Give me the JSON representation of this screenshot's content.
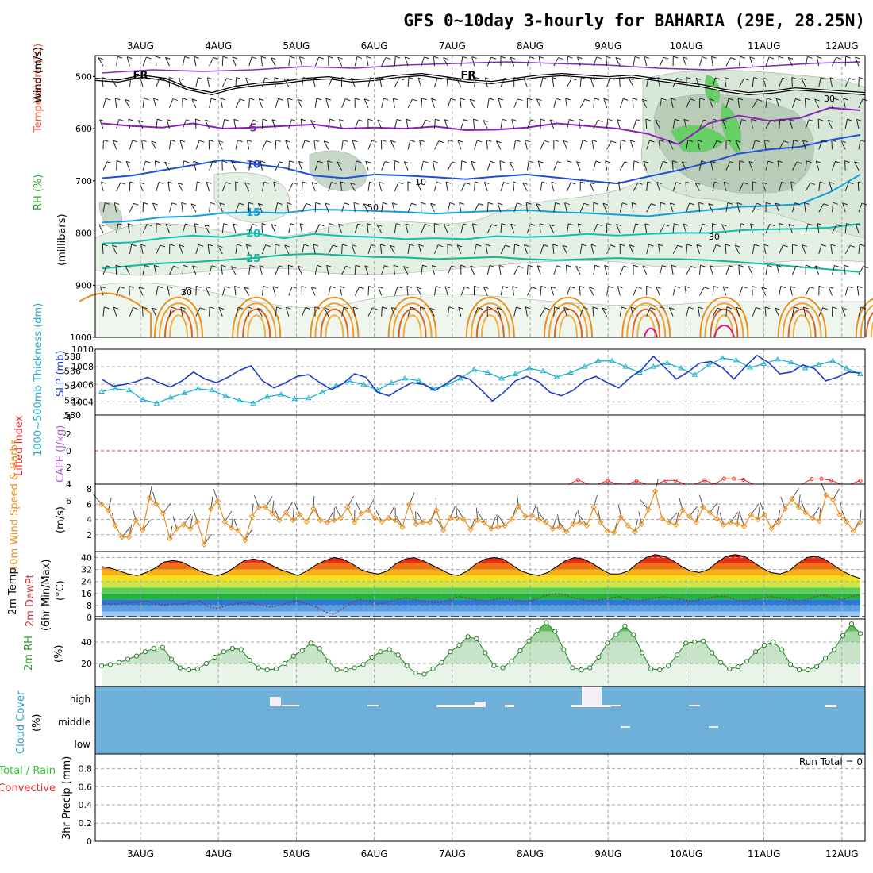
{
  "title": "GFS 0~10day 3-hourly for BAHARIA (29E, 28.25N)",
  "colors": {
    "wind_label": "#000000",
    "temp_label": "#ff5a3c",
    "rh_label": "#2aa02a",
    "thickness": "#20b2c8",
    "slp": "#1e3cc8",
    "cape": "#b060d0",
    "lifted": "#e83030",
    "wind10": "#e89020",
    "temp2m": "#000000",
    "dewpt": "#c04040",
    "rh2m": "#28a028",
    "cloud": "#2e9cd0",
    "precip_total": "#28c828",
    "precip_conv": "#e83030"
  },
  "chart_data": {
    "type": "line",
    "x_date_labels": [
      "3AUG",
      "4AUG",
      "5AUG",
      "6AUG",
      "7AUG",
      "8AUG",
      "9AUG",
      "10AUG",
      "11AUG",
      "12AUG"
    ],
    "x_start": "2AUG 12Z",
    "x_step": "3hr",
    "panels": [
      {
        "id": "upper",
        "ylabel_parts": [
          "Wind (m/s)",
          "Temperature (°C)",
          "RH (%)"
        ],
        "ylabel2": "(millibars)",
        "y_ticks": [
          "500",
          "600",
          "700",
          "800",
          "900",
          "1000"
        ],
        "ylim": [
          460,
          1000
        ],
        "freezing_label": "FR",
        "isotherms": [
          {
            "label": "5",
            "level": [
              590,
              595,
              598,
              590,
              600,
              598,
              595,
              592,
              600,
              598,
              600,
              596,
              603,
              602,
              598,
              590,
              595,
              600,
              610,
              630,
              590,
              575,
              585,
              580,
              560,
              565
            ]
          },
          {
            "label": "10",
            "level": [
              695,
              690,
              680,
              670,
              660,
              668,
              675,
              690,
              695,
              688,
              690,
              693,
              697,
              692,
              688,
              694,
              700,
              705,
              692,
              680,
              665,
              648,
              640,
              635,
              622,
              612
            ]
          },
          {
            "label": "15",
            "level": [
              780,
              777,
              770,
              768,
              762,
              760,
              762,
              755,
              756,
              758,
              760,
              763,
              760,
              758,
              756,
              760,
              762,
              765,
              768,
              762,
              756,
              750,
              748,
              745,
              722,
              688
            ]
          },
          {
            "label": "20",
            "level": [
              820,
              818,
              810,
              805,
              808,
              800,
              810,
              802,
              806,
              808,
              812,
              810,
              812,
              806,
              808,
              806,
              802,
              805,
              802,
              800,
              800,
              795,
              793,
              792,
              790,
              782
            ]
          },
          {
            "label": "25",
            "level": [
              868,
              863,
              858,
              856,
              852,
              848,
              842,
              840,
              843,
              846,
              847,
              850,
              848,
              846,
              850,
              852,
              850,
              848,
              850,
              850,
              852,
              856,
              860,
              865,
              870,
              875
            ]
          }
        ],
        "rh_labels": [
          "30",
          "10",
          "50",
          "30",
          "30"
        ]
      },
      {
        "id": "thickness-slp",
        "ylabel_parts": [
          "1000~500mb Thickness (dm)",
          "SLP (mb)"
        ],
        "y_ticks_left": [
          "580",
          "582",
          "584",
          "586",
          "588"
        ],
        "y_ticks_right": [
          "1004",
          "1006",
          "1008",
          "1010"
        ],
        "thickness_dm": [
          583.2,
          583.6,
          583.4,
          582.1,
          581.6,
          582.4,
          583.0,
          583.6,
          583.4,
          582.6,
          582.0,
          581.6,
          582.5,
          582.8,
          582.2,
          582.3,
          583.1,
          584.0,
          584.6,
          584.2,
          583.4,
          584.4,
          585.0,
          584.7,
          583.6,
          584.1,
          585.0,
          586.2,
          585.8,
          585.0,
          585.6,
          586.4,
          586.0,
          585.2,
          585.8,
          586.6,
          587.4,
          587.4,
          586.6,
          585.8,
          586.6,
          587.1,
          586.4,
          585.5,
          586.8,
          587.8,
          587.5,
          586.5,
          587.0,
          587.6,
          587.2,
          586.4,
          586.9,
          587.4,
          586.4,
          585.6
        ],
        "slp_mb": [
          1006.6,
          1005.8,
          1006.0,
          1006.3,
          1006.8,
          1006.2,
          1005.7,
          1006.4,
          1007.4,
          1006.6,
          1006.2,
          1006.8,
          1007.6,
          1008.1,
          1006.4,
          1005.6,
          1006.2,
          1006.9,
          1007.1,
          1006.2,
          1005.4,
          1006.1,
          1007.2,
          1006.8,
          1005.1,
          1004.7,
          1005.5,
          1006.2,
          1006.0,
          1005.3,
          1006.1,
          1007.0,
          1006.6,
          1005.4,
          1004.1,
          1005.1,
          1006.4,
          1006.9,
          1006.3,
          1005.1,
          1004.7,
          1005.3,
          1006.4,
          1006.9,
          1006.2,
          1005.6,
          1006.8,
          1007.7,
          1009.2,
          1007.9,
          1006.6,
          1007.4,
          1008.4,
          1008.6,
          1007.9,
          1006.6,
          1008.0,
          1009.3,
          1008.5,
          1007.2,
          1007.4,
          1008.2,
          1007.8,
          1006.4,
          1006.8,
          1007.4,
          1007.3
        ]
      },
      {
        "id": "cape-li",
        "ylabel_parts": [
          "Lifted Index",
          "CAPE (J/kg)"
        ],
        "y_ticks_left": [
          "-4",
          "-2",
          "0",
          "2",
          "4",
          "6"
        ],
        "lifted_index": [
          8,
          8,
          8,
          8,
          8,
          8,
          8,
          8,
          8,
          8,
          8,
          8,
          8,
          8,
          8,
          8,
          8,
          8,
          8,
          8,
          8,
          8,
          8,
          8,
          8,
          8,
          8,
          8,
          8,
          8,
          8,
          8,
          8,
          8,
          8,
          8,
          8,
          8,
          8,
          8,
          8,
          8,
          8,
          8,
          8,
          8,
          8,
          8,
          8,
          5.6,
          8,
          8,
          6.1,
          7.9,
          8,
          6.2,
          8,
          8,
          5.9,
          5.9,
          8,
          8,
          5.8,
          8,
          4.8,
          4.9,
          5.5,
          8,
          8,
          8,
          8,
          8,
          8,
          5.1,
          4.9,
          5.8,
          8,
          8,
          5.9
        ]
      },
      {
        "id": "wind10",
        "ylabel_parts": [
          "10m Wind Speed & Barbs",
          "(m/s)"
        ],
        "y_ticks": [
          "2",
          "4",
          "6",
          "8"
        ],
        "speed_ms": [
          6.0,
          5.2,
          3.2,
          1.7,
          1.7,
          3.9,
          2.6,
          6.8,
          6.0,
          4.8,
          1.5,
          2.8,
          3.3,
          2.8,
          3.7,
          0.7,
          5.4,
          6.4,
          3.7,
          2.9,
          2.5,
          1.3,
          4.4,
          5.6,
          5.6,
          4.8,
          3.9,
          4.9,
          3.9,
          4.6,
          3.7,
          5.4,
          3.9,
          3.6,
          3.9,
          4.2,
          5.6,
          3.6,
          4.8,
          5.2,
          4.2,
          3.7,
          4.2,
          3.9,
          3.0,
          6.0,
          3.4,
          3.6,
          3.6,
          5.2,
          2.6,
          4.2,
          4.2,
          4.0,
          2.7,
          3.9,
          3.6,
          2.8,
          3.0,
          3.2,
          4.0,
          5.7,
          4.4,
          4.5,
          4.0,
          3.6,
          2.8,
          3.0,
          2.4,
          3.4,
          3.6,
          3.2,
          5.6,
          3.6,
          2.5,
          2.3,
          4.3,
          3.2,
          2.4,
          3.4,
          5.3,
          7.7,
          4.1,
          3.6,
          3.3,
          5.2,
          4.4,
          3.6,
          5.6,
          4.9,
          4.1,
          3.3,
          3.6,
          3.4,
          3.1,
          4.6,
          4.0,
          4.6,
          2.8,
          3.6,
          5.4,
          6.7,
          5.6,
          4.9,
          4.2,
          3.8,
          7.2,
          6.6,
          4.6,
          3.7,
          2.5,
          3.6
        ]
      },
      {
        "id": "temp2m",
        "ylabel_parts": [
          "2m Temp",
          "2m DewPt",
          "(6hr Min/Max)",
          "(°C)"
        ],
        "y_ticks": [
          "0",
          "8",
          "16",
          "24",
          "32",
          "40"
        ],
        "temp_c": [
          34,
          33,
          31,
          29,
          28,
          30,
          33,
          37,
          38,
          37,
          34,
          31,
          29,
          28,
          30,
          34,
          38,
          39,
          38,
          35,
          32,
          30,
          28,
          31,
          35,
          38,
          40,
          39,
          36,
          32,
          30,
          29,
          31,
          36,
          39,
          40,
          38,
          35,
          32,
          29,
          28,
          31,
          36,
          39,
          40,
          39,
          35,
          31,
          29,
          28,
          30,
          34,
          38,
          40,
          39,
          36,
          32,
          29,
          29,
          31,
          36,
          40,
          42,
          41,
          38,
          34,
          31,
          30,
          32,
          37,
          41,
          42,
          41,
          37,
          33,
          30,
          29,
          31,
          36,
          40,
          41,
          39,
          35,
          31,
          28,
          26
        ],
        "dewpt_c": [
          10,
          9,
          9,
          10,
          10,
          11,
          9,
          8,
          9,
          9,
          10,
          11,
          7,
          6,
          8,
          9,
          10,
          9,
          8,
          7,
          8,
          10,
          11,
          9,
          7,
          4,
          2,
          6,
          10,
          12,
          11,
          9,
          10,
          12,
          13,
          12,
          11,
          10,
          10,
          12,
          14,
          13,
          12,
          11,
          12,
          13,
          12,
          11,
          11,
          13,
          15,
          16,
          15,
          13,
          12,
          11,
          12,
          13,
          14,
          12,
          11,
          12,
          13,
          14,
          13,
          12,
          11,
          12,
          13,
          14,
          14,
          12,
          11,
          12,
          13,
          14,
          13,
          12,
          11,
          12,
          14,
          15,
          13,
          12,
          14,
          15
        ]
      },
      {
        "id": "rh2m",
        "ylabel_parts": [
          "2m RH",
          "(%)"
        ],
        "y_ticks": [
          "20",
          "40"
        ],
        "rh_pct": [
          18,
          19,
          21,
          24,
          27,
          31,
          34,
          35,
          24,
          16,
          14,
          15,
          20,
          26,
          31,
          34,
          33,
          23,
          16,
          14,
          15,
          20,
          27,
          32,
          39,
          34,
          22,
          14,
          14,
          16,
          19,
          26,
          31,
          33,
          28,
          18,
          11,
          10,
          15,
          21,
          31,
          37,
          45,
          43,
          30,
          18,
          16,
          22,
          32,
          41,
          51,
          58,
          50,
          33,
          16,
          14,
          16,
          26,
          39,
          47,
          55,
          47,
          30,
          15,
          14,
          18,
          28,
          39,
          40,
          41,
          30,
          21,
          15,
          17,
          22,
          31,
          37,
          40,
          33,
          19,
          14,
          14,
          17,
          25,
          33,
          46,
          57,
          48
        ]
      },
      {
        "id": "cloud",
        "ylabel_parts": [
          "Cloud Cover",
          "(%)"
        ],
        "y_ticks": [
          "high",
          "middle",
          "low"
        ]
      },
      {
        "id": "precip",
        "ylabel_parts": [
          "Total / Rain",
          "Convective",
          "3hr Precip (mm)"
        ],
        "y_ticks": [
          "0",
          "0.2",
          "0.4",
          "0.6",
          "0.8"
        ],
        "run_total_label": "Run Total = 0"
      }
    ]
  }
}
